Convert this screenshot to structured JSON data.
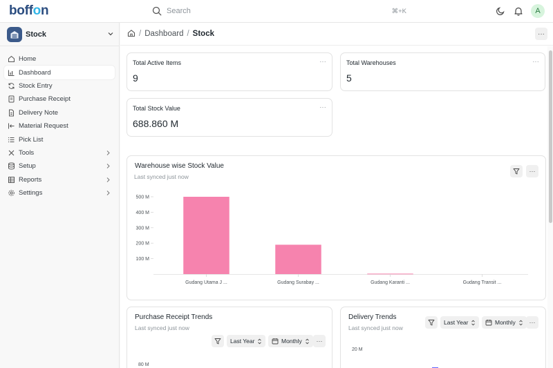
{
  "app": {
    "logo": {
      "part1": "boff",
      "accent": "o",
      "part2": "n"
    },
    "search": {
      "placeholder": "Search",
      "shortcut": "⌘+K"
    },
    "avatar_initial": "A",
    "icons": [
      "search-icon",
      "moon-icon",
      "bell-icon"
    ]
  },
  "sidebar": {
    "workspace": "Stock",
    "items": [
      {
        "label": "Home",
        "icon": "home-icon"
      },
      {
        "label": "Dashboard",
        "icon": "bar-chart-icon",
        "active": true
      },
      {
        "label": "Stock Entry",
        "icon": "refresh-icon"
      },
      {
        "label": "Purchase Receipt",
        "icon": "receipt-icon"
      },
      {
        "label": "Delivery Note",
        "icon": "document-icon"
      },
      {
        "label": "Material Request",
        "icon": "arrow-left-icon"
      },
      {
        "label": "Pick List",
        "icon": "list-icon"
      },
      {
        "label": "Tools",
        "icon": "tools-icon",
        "expandable": true
      },
      {
        "label": "Setup",
        "icon": "database-icon",
        "expandable": true
      },
      {
        "label": "Reports",
        "icon": "table-icon",
        "expandable": true
      },
      {
        "label": "Settings",
        "icon": "gear-icon",
        "expandable": true
      }
    ]
  },
  "breadcrumb": {
    "level1": "Dashboard",
    "level2": "Stock"
  },
  "number_cards": [
    {
      "title": "Total Active Items",
      "value": "9"
    },
    {
      "title": "Total Warehouses",
      "value": "5"
    },
    {
      "title": "Total Stock Value",
      "value": "688.860 M"
    }
  ],
  "warehouse_chart": {
    "title": "Warehouse wise Stock Value",
    "subtitle": "Last synced just now"
  },
  "purchase_receipt_chart": {
    "title": "Purchase Receipt Trends",
    "subtitle": "Last synced just now",
    "period": "Last Year",
    "interval": "Monthly",
    "first_tick": "80 M"
  },
  "delivery_chart": {
    "title": "Delivery Trends",
    "subtitle": "Last synced just now",
    "period": "Last Year",
    "interval": "Monthly",
    "first_tick": "20 M"
  },
  "colors": {
    "bar": "#f683ae",
    "delivery_bar": "#5e64ff",
    "logo": "#2b4d80",
    "logo_accent": "#34b6e8"
  },
  "chart_data": [
    {
      "type": "bar",
      "title": "Warehouse wise Stock Value",
      "categories": [
        "Gudang Utama J ...",
        "Gudang Surabay ...",
        "Gudang Karanti ...",
        "Gudang Transit ..."
      ],
      "values": [
        500,
        190,
        3,
        0
      ],
      "yticks": [
        "100 M",
        "200 M",
        "300 M",
        "400 M",
        "500 M"
      ],
      "ylim": [
        0,
        500
      ],
      "grid": false
    }
  ]
}
